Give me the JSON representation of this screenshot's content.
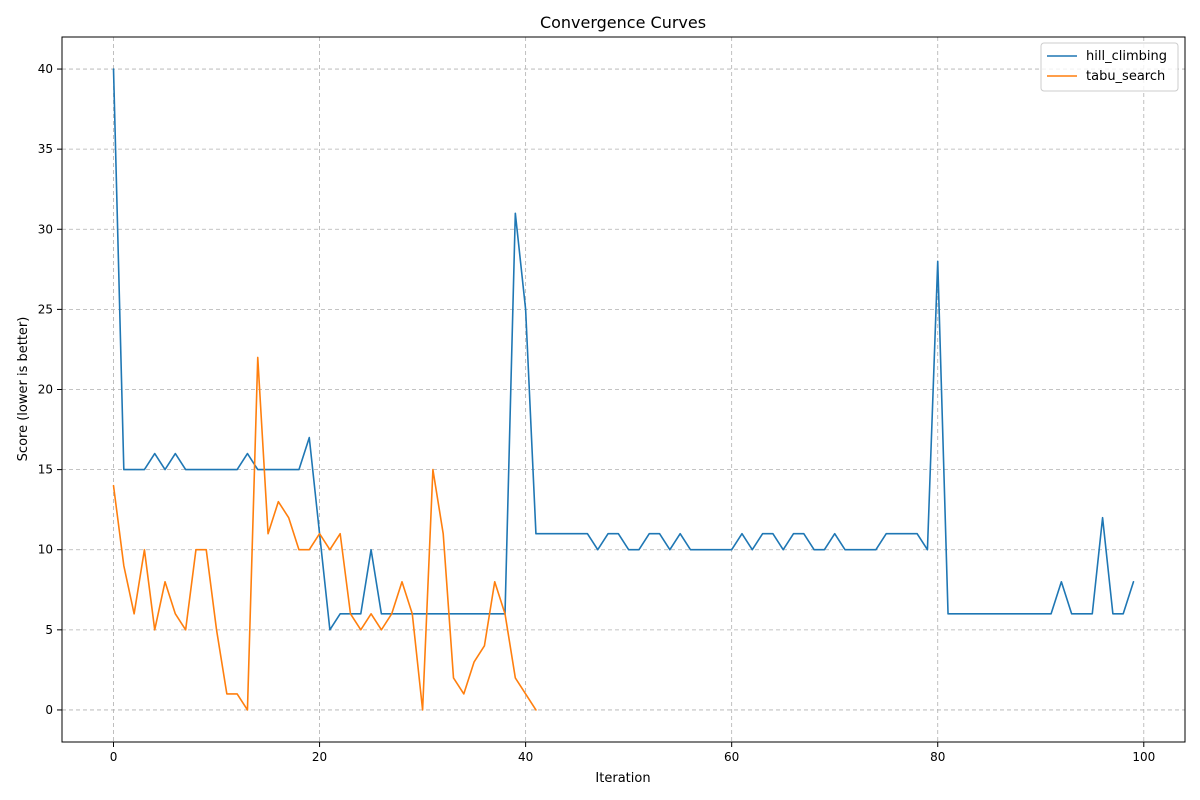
{
  "chart_data": {
    "type": "line",
    "title": "Convergence Curves",
    "xlabel": "Iteration",
    "ylabel": "Score (lower is better)",
    "xlim": [
      -5,
      104
    ],
    "ylim": [
      -2,
      42
    ],
    "xticks": [
      0,
      20,
      40,
      60,
      80,
      100
    ],
    "yticks": [
      0,
      5,
      10,
      15,
      20,
      25,
      30,
      35,
      40
    ],
    "grid": true,
    "legend_position": "top-right",
    "series": [
      {
        "name": "hill_climbing",
        "color": "#1f77b4",
        "x": [
          0,
          1,
          2,
          3,
          4,
          5,
          6,
          7,
          8,
          9,
          10,
          11,
          12,
          13,
          14,
          15,
          16,
          17,
          18,
          19,
          20,
          21,
          22,
          23,
          24,
          25,
          26,
          27,
          28,
          29,
          30,
          31,
          32,
          33,
          34,
          35,
          36,
          37,
          38,
          39,
          40,
          41,
          42,
          43,
          44,
          45,
          46,
          47,
          48,
          49,
          50,
          51,
          52,
          53,
          54,
          55,
          56,
          57,
          58,
          59,
          60,
          61,
          62,
          63,
          64,
          65,
          66,
          67,
          68,
          69,
          70,
          71,
          72,
          73,
          74,
          75,
          76,
          77,
          78,
          79,
          80,
          81,
          82,
          83,
          84,
          85,
          86,
          87,
          88,
          89,
          90,
          91,
          92,
          93,
          94,
          95,
          96,
          97,
          98,
          99
        ],
        "y": [
          40,
          15,
          15,
          15,
          16,
          15,
          16,
          15,
          15,
          15,
          15,
          15,
          15,
          16,
          15,
          15,
          15,
          15,
          15,
          17,
          11,
          5,
          6,
          6,
          6,
          10,
          6,
          6,
          6,
          6,
          6,
          6,
          6,
          6,
          6,
          6,
          6,
          6,
          6,
          31,
          25,
          11,
          11,
          11,
          11,
          11,
          11,
          10,
          11,
          11,
          10,
          10,
          11,
          11,
          10,
          11,
          10,
          10,
          10,
          10,
          10,
          11,
          10,
          11,
          11,
          10,
          11,
          11,
          10,
          10,
          11,
          10,
          10,
          10,
          10,
          11,
          11,
          11,
          11,
          10,
          28,
          6,
          6,
          6,
          6,
          6,
          6,
          6,
          6,
          6,
          6,
          6,
          8,
          6,
          6,
          6,
          12,
          6,
          6,
          8
        ]
      },
      {
        "name": "tabu_search",
        "color": "#ff7f0e",
        "x": [
          0,
          1,
          2,
          3,
          4,
          5,
          6,
          7,
          8,
          9,
          10,
          11,
          12,
          13,
          14,
          15,
          16,
          17,
          18,
          19,
          20,
          21,
          22,
          23,
          24,
          25,
          26,
          27,
          28,
          29,
          30,
          31,
          32,
          33,
          34,
          35,
          36,
          37,
          38,
          39,
          40,
          41
        ],
        "y": [
          14,
          9,
          6,
          10,
          5,
          8,
          6,
          5,
          10,
          10,
          5,
          1,
          1,
          0,
          22,
          11,
          13,
          12,
          10,
          10,
          11,
          10,
          11,
          6,
          5,
          6,
          5,
          6,
          8,
          6,
          0,
          15,
          11,
          2,
          1,
          3,
          4,
          8,
          6,
          2,
          1,
          0
        ]
      }
    ]
  }
}
